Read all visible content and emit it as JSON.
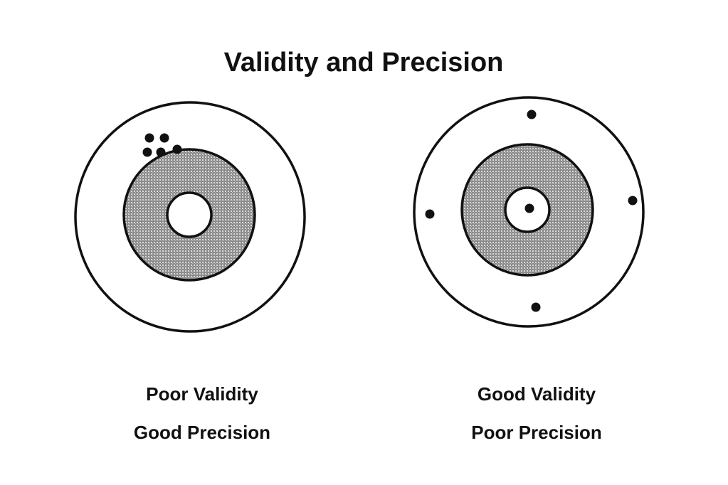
{
  "title": "Validity and Precision",
  "targets": [
    {
      "validity": "Poor Validity",
      "precision": "Good Precision"
    },
    {
      "validity": "Good Validity",
      "precision": "Poor Precision"
    }
  ]
}
